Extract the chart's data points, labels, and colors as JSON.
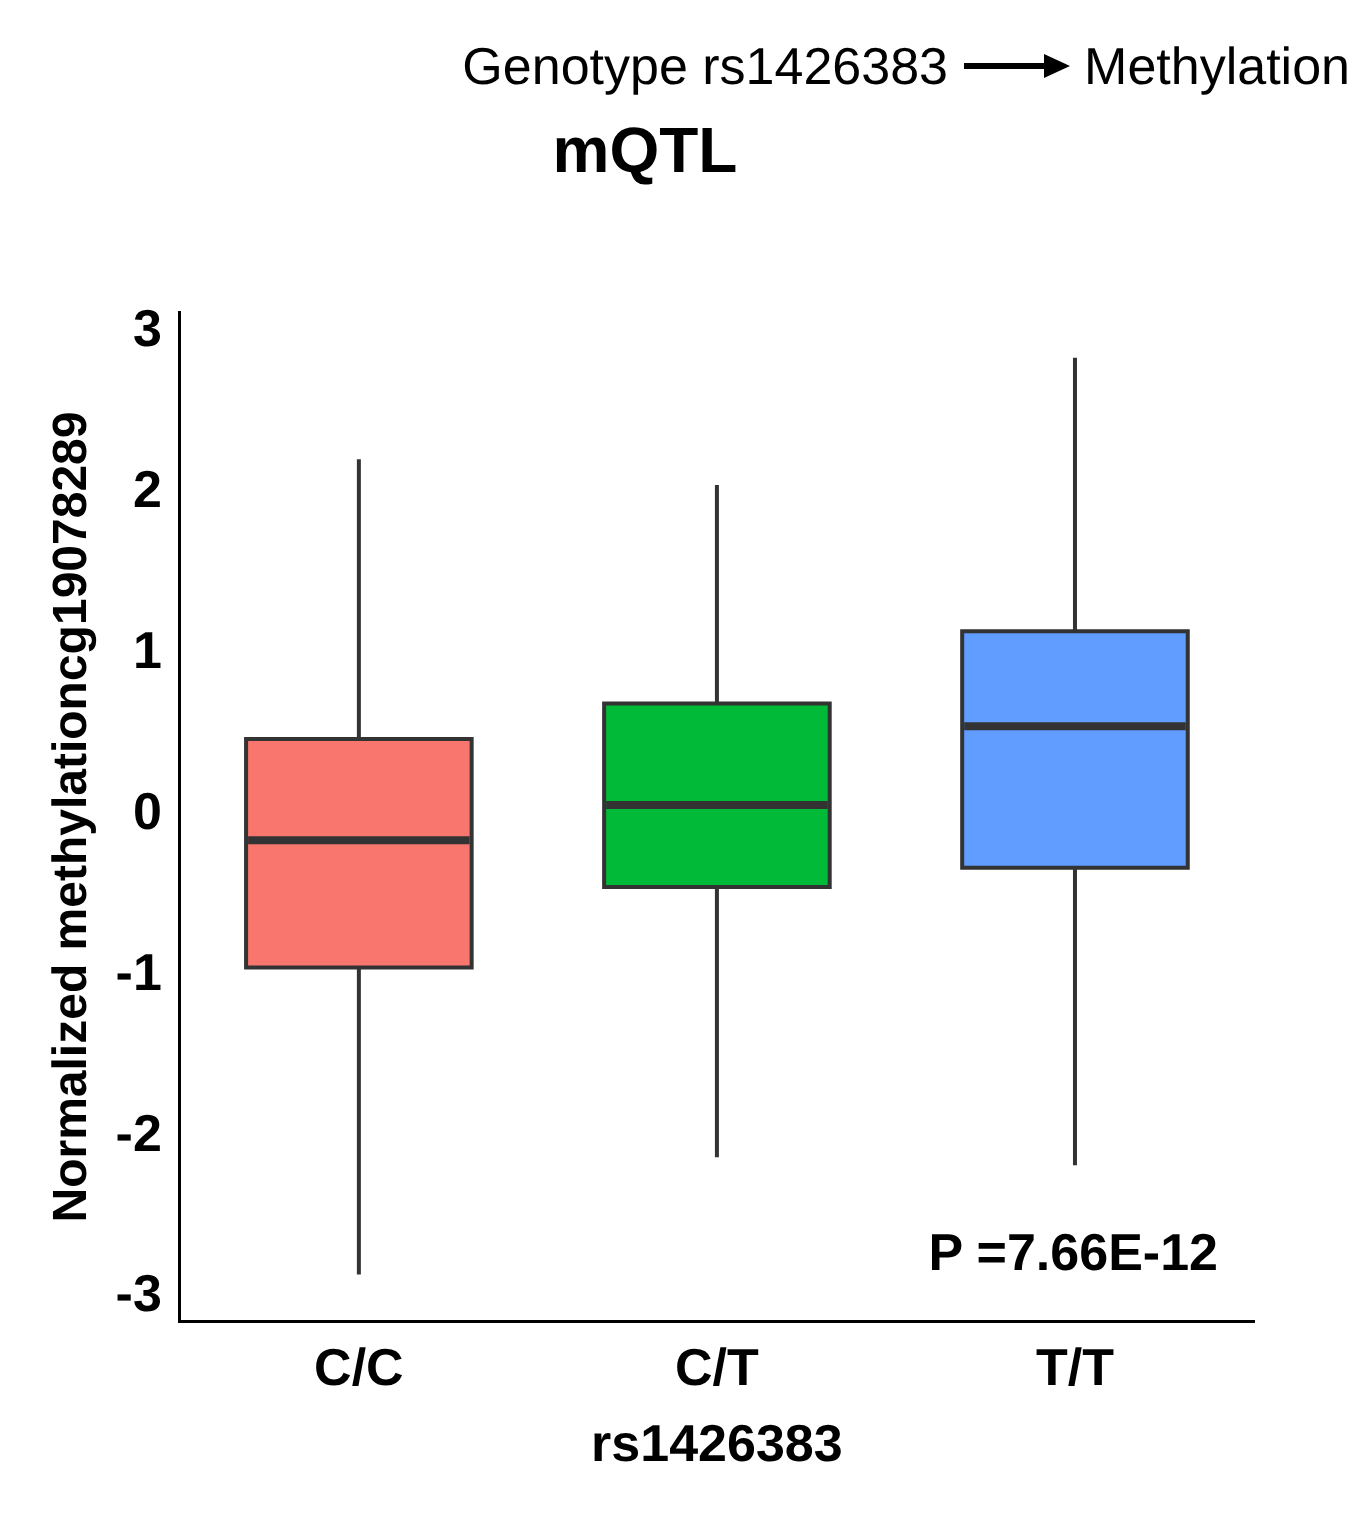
{
  "chart_data": {
    "type": "box",
    "title": "mQTL",
    "xlabel": "rs1426383",
    "ylabel": "Normalized methylationcg19078289",
    "categories": [
      "C/C",
      "C/T",
      "T/T"
    ],
    "colors": [
      "#f8766d",
      "#00ba38",
      "#619cff"
    ],
    "boxes": [
      {
        "low": -2.86,
        "q1": -0.95,
        "median": -0.16,
        "q3": 0.47,
        "high": 2.21
      },
      {
        "low": -2.13,
        "q1": -0.45,
        "median": 0.06,
        "q3": 0.69,
        "high": 2.05
      },
      {
        "low": -2.18,
        "q1": -0.33,
        "median": 0.55,
        "q3": 1.14,
        "high": 2.84
      }
    ],
    "ylim": [
      -3.15,
      3.12
    ],
    "yticks": [
      -3,
      -2,
      -1,
      0,
      1,
      2,
      3
    ],
    "grid": false,
    "legend": false,
    "annotations": [
      "Genotype rs1426383",
      "Methylation",
      {
        "text": "P =7.66E-12"
      }
    ]
  }
}
